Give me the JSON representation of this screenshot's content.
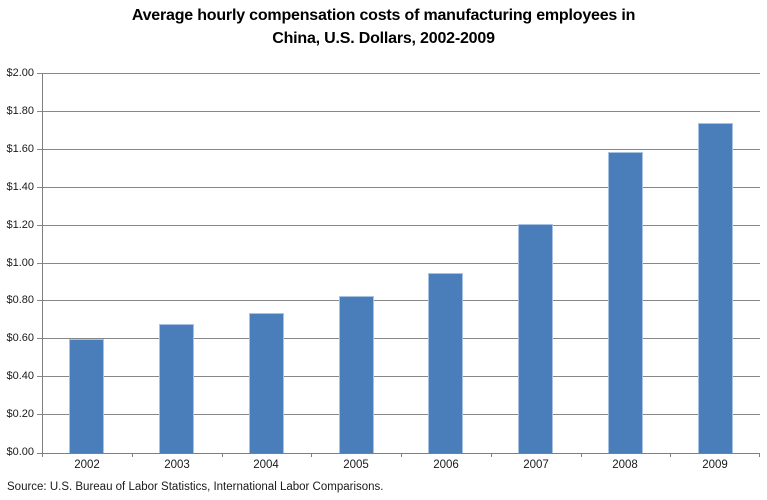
{
  "chart_data": {
    "type": "bar",
    "title_line1": "Average hourly compensation costs of manufacturing employees in",
    "title_line2": "China, U.S. Dollars, 2002-2009",
    "categories": [
      "2002",
      "2003",
      "2004",
      "2005",
      "2006",
      "2007",
      "2008",
      "2009"
    ],
    "values": [
      0.6,
      0.68,
      0.74,
      0.83,
      0.95,
      1.21,
      1.59,
      1.74
    ],
    "series_name": "Average hourly compensation cost (USD)",
    "xlabel": "",
    "ylabel": "",
    "ylim": [
      0,
      2.0
    ],
    "ytick_step": 0.2,
    "ytick_labels_bottom_to_top": [
      "$0.00",
      "$0.20",
      "$0.40",
      "$0.60",
      "$0.80",
      "$1.00",
      "$1.20",
      "$1.40",
      "$1.60",
      "$1.80",
      "$2.00"
    ],
    "grid": true,
    "legend": false,
    "colors": {
      "bar_fill": "#4A7EBB",
      "bar_border": "#A9C2E1",
      "gridline": "#878787",
      "axis": "#7F7F7F",
      "tick_text": "#1a1a1a",
      "title_text": "#000000"
    }
  },
  "source": "Source: U.S. Bureau of Labor Statistics, International Labor Comparisons."
}
